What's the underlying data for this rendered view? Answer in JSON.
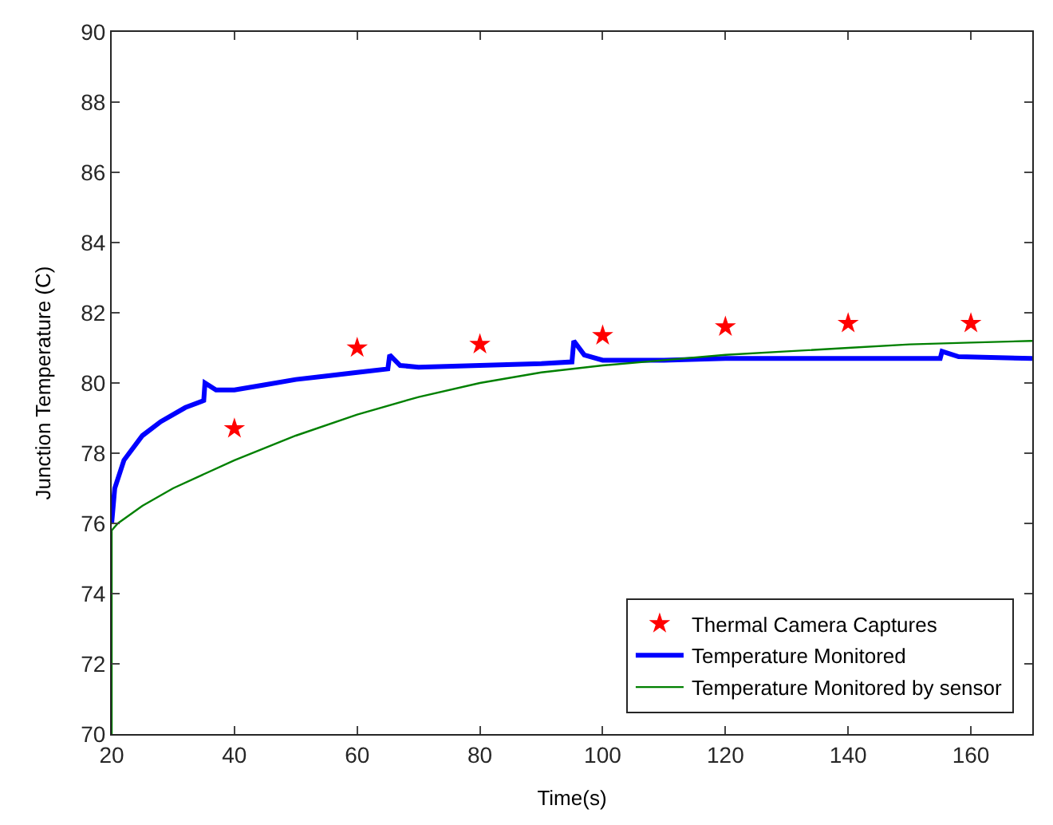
{
  "chart_data": {
    "type": "line",
    "xlabel": "Time(s)",
    "ylabel": "Junction Temperature (C)",
    "xlim": [
      20,
      170
    ],
    "xticks": [
      20,
      40,
      60,
      80,
      100,
      120,
      140,
      160
    ],
    "ylim": [
      70,
      90
    ],
    "yticks": [
      70,
      72,
      74,
      76,
      78,
      80,
      82,
      84,
      86,
      88,
      90
    ],
    "legend": "bottom right",
    "series": [
      {
        "name": "Thermal Camera Captures",
        "type": "scatter",
        "marker": "star",
        "color": "#ff0000",
        "x": [
          40,
          60,
          80,
          100,
          120,
          140,
          160
        ],
        "values": [
          78.7,
          81.0,
          81.1,
          81.35,
          81.6,
          81.7,
          81.7
        ]
      },
      {
        "name": "Temperature Monitored",
        "marker": "none",
        "color": "#0000ff",
        "x": [
          20,
          20.5,
          22,
          25,
          28,
          32,
          35,
          35.2,
          37,
          40,
          45,
          50,
          55,
          60,
          65,
          65.3,
          67,
          70,
          80,
          90,
          95,
          95.3,
          97,
          100,
          110,
          120,
          140,
          155,
          155.3,
          158,
          170
        ],
        "values": [
          76.0,
          77.0,
          77.8,
          78.5,
          78.9,
          79.3,
          79.5,
          80.0,
          79.8,
          79.8,
          79.95,
          80.1,
          80.2,
          80.3,
          80.4,
          80.8,
          80.5,
          80.45,
          80.5,
          80.55,
          80.6,
          81.2,
          80.8,
          80.65,
          80.65,
          80.7,
          80.7,
          80.7,
          80.9,
          80.75,
          80.7
        ]
      },
      {
        "name": "Temperature Monitored by sensor",
        "marker": "none",
        "color": "#008000",
        "x": [
          20,
          20,
          21,
          25,
          30,
          40,
          50,
          60,
          70,
          80,
          90,
          100,
          110,
          120,
          130,
          140,
          150,
          160,
          170
        ],
        "values": [
          70.0,
          75.8,
          76.0,
          76.5,
          77.0,
          77.8,
          78.5,
          79.1,
          79.6,
          80.0,
          80.3,
          80.5,
          80.65,
          80.8,
          80.9,
          81.0,
          81.1,
          81.15,
          81.2
        ]
      }
    ]
  }
}
